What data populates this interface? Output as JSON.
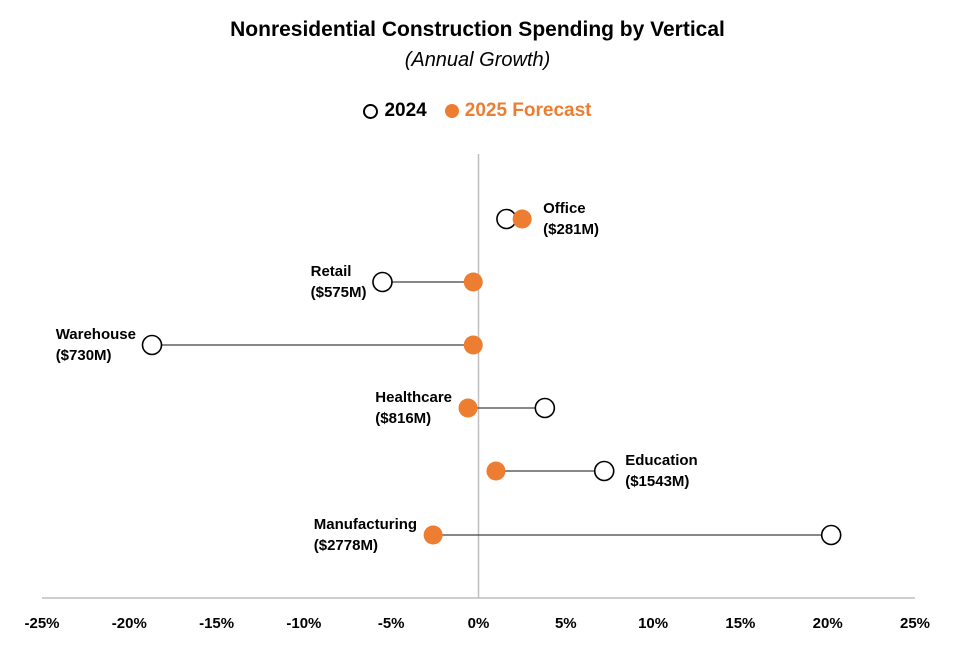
{
  "title": "Nonresidential Construction Spending by Vertical",
  "subtitle": "(Annual Growth)",
  "legend": {
    "series_2024": "2024",
    "series_2025": "2025 Forecast"
  },
  "colors": {
    "forecast": "#ED7D31",
    "open": "#000000",
    "axis": "#bfbfbf",
    "connector": "#404040"
  },
  "chart_data": {
    "type": "scatter",
    "subtype": "dumbbell",
    "title": "Nonresidential Construction Spending by Vertical",
    "subtitle": "(Annual Growth)",
    "xlabel": "",
    "ylabel": "",
    "xlim": [
      -25,
      25
    ],
    "xticks": [
      -25,
      -20,
      -15,
      -10,
      -5,
      0,
      5,
      10,
      15,
      20,
      25
    ],
    "xtick_labels": [
      "-25%",
      "-20%",
      "-15%",
      "-10%",
      "-5%",
      "0%",
      "5%",
      "10%",
      "15%",
      "20%",
      "25%"
    ],
    "grid": false,
    "legend_position": "top-center",
    "series": [
      {
        "name": "2024",
        "marker": "open-circle"
      },
      {
        "name": "2025 Forecast",
        "marker": "filled-circle"
      }
    ],
    "categories": [
      {
        "name": "Office",
        "amount": "($281M)",
        "v2024": 1.6,
        "v2025": 2.5,
        "label_side": "right"
      },
      {
        "name": "Retail",
        "amount": "($575M)",
        "v2024": -5.5,
        "v2025": -0.3,
        "label_side": "left"
      },
      {
        "name": "Warehouse",
        "amount": "($730M)",
        "v2024": -18.7,
        "v2025": -0.3,
        "label_side": "left"
      },
      {
        "name": "Healthcare",
        "amount": "($816M)",
        "v2024": 3.8,
        "v2025": -0.6,
        "label_side": "left"
      },
      {
        "name": "Education",
        "amount": "($1543M)",
        "v2024": 7.2,
        "v2025": 1.0,
        "label_side": "right"
      },
      {
        "name": "Manufacturing",
        "amount": "($2778M)",
        "v2024": 20.2,
        "v2025": -2.6,
        "label_side": "left"
      }
    ]
  }
}
